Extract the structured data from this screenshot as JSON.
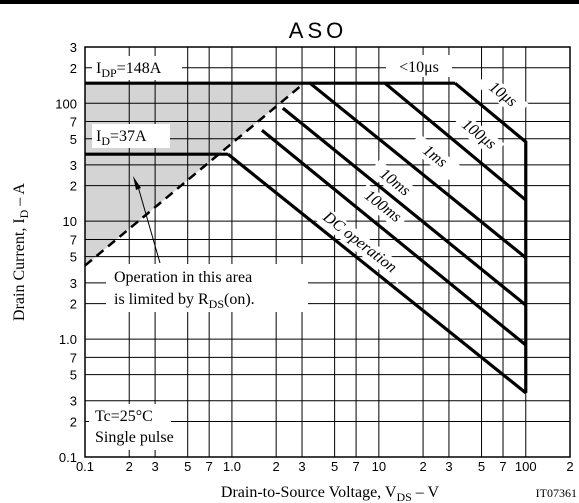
{
  "chart_data": {
    "type": "line",
    "title": "ASO",
    "x_label": [
      "Drain-to-Source Voltage, V",
      "DS",
      " – V"
    ],
    "y_label": [
      "Drain Current, I",
      "D",
      " – A"
    ],
    "xscale": "log",
    "yscale": "log",
    "grid": true,
    "xlim": [
      0.1,
      200
    ],
    "ylim": [
      0.1,
      300
    ],
    "xticks": [
      0.1,
      {
        "value": 0.2,
        "label": "2"
      },
      {
        "value": 0.3,
        "label": "3"
      },
      {
        "value": 0.5,
        "label": "5"
      },
      {
        "value": 0.7,
        "label": "7"
      },
      {
        "value": 1,
        "label": "1.0"
      },
      2,
      3,
      5,
      7,
      10,
      {
        "value": 20,
        "label": "2"
      },
      {
        "value": 30,
        "label": "3"
      },
      {
        "value": 50,
        "label": "5"
      },
      {
        "value": 70,
        "label": "7"
      },
      100,
      {
        "value": 200,
        "label": "2"
      }
    ],
    "yticks": [
      0.1,
      {
        "value": 0.2,
        "label": "2"
      },
      {
        "value": 0.3,
        "label": "3"
      },
      {
        "value": 0.5,
        "label": "5"
      },
      {
        "value": 0.7,
        "label": "7"
      },
      {
        "value": 1,
        "label": "1.0"
      },
      2,
      3,
      5,
      7,
      10,
      {
        "value": 20,
        "label": "2"
      },
      {
        "value": 30,
        "label": "3"
      },
      {
        "value": 50,
        "label": "5"
      },
      {
        "value": 70,
        "label": "7"
      },
      100,
      {
        "value": 200,
        "label": "2"
      },
      {
        "value": 300,
        "label": "3"
      }
    ],
    "series": [
      {
        "name": "<10μs",
        "color": "#000000",
        "x": [
          0.1,
          33
        ],
        "values": [
          148,
          148
        ]
      },
      {
        "name": "10μs",
        "color": "#000000",
        "x": [
          33,
          100,
          100
        ],
        "values": [
          148,
          47,
          0.35
        ]
      },
      {
        "name": "100μs",
        "color": "#000000",
        "x": [
          11,
          100
        ],
        "values": [
          148,
          15.1
        ]
      },
      {
        "name": "1ms",
        "color": "#000000",
        "x": [
          3.4,
          100
        ],
        "values": [
          148,
          4.9
        ]
      },
      {
        "name": "10ms",
        "color": "#000000",
        "x": [
          2.22,
          100
        ],
        "values": [
          91,
          1.94
        ]
      },
      {
        "name": "100ms",
        "color": "#000000",
        "x": [
          1.6,
          100
        ],
        "values": [
          59,
          0.89
        ]
      },
      {
        "name": "DC operation",
        "color": "#000000",
        "x": [
          0.94,
          100
        ],
        "values": [
          37,
          0.35
        ]
      },
      {
        "color": "#000000",
        "x": [
          0.1,
          0.94
        ],
        "values": [
          37,
          37
        ]
      },
      {
        "color": "#000000",
        "dashed": true,
        "x": [
          0.1,
          3.1
        ],
        "values": [
          4.2,
          148
        ]
      }
    ],
    "annotations": [
      [
        "I",
        "DP",
        "=148A"
      ],
      [
        "I",
        "D",
        "=37A"
      ],
      [
        "Operation in this area"
      ],
      [
        "is limited by R",
        "DS",
        "(on)."
      ],
      [
        "Tc=25°C"
      ],
      [
        "Single pulse"
      ],
      [
        "IT07361"
      ]
    ]
  }
}
